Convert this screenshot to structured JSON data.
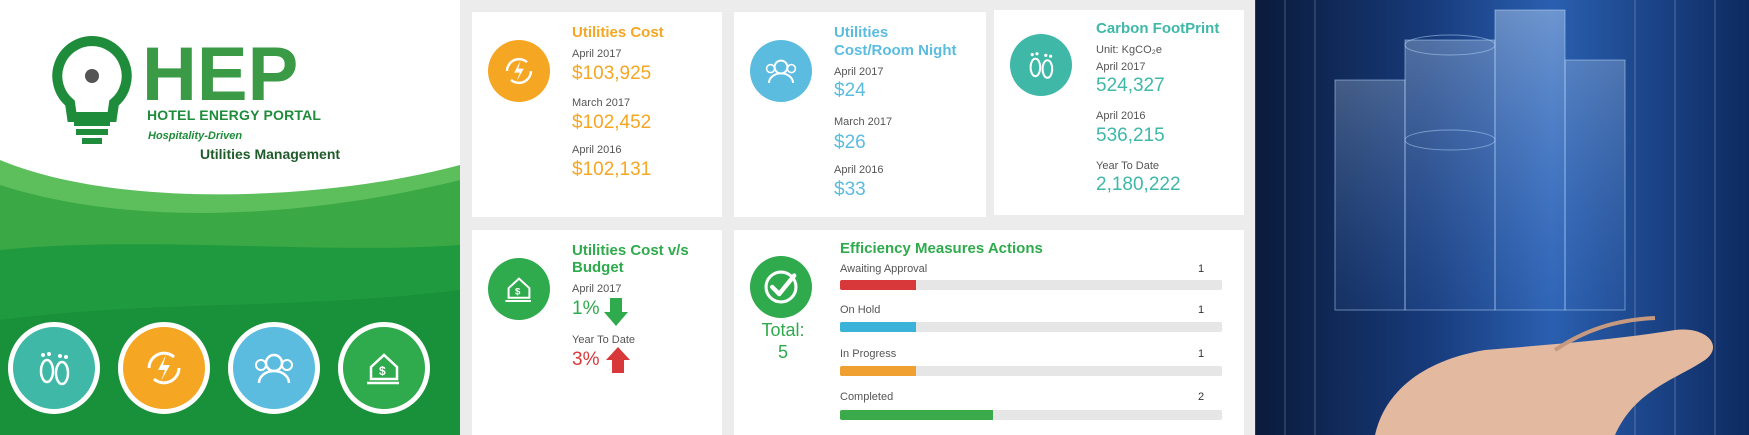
{
  "brand": {
    "logo_text": "HEP",
    "portal_name": "HOTEL ENERGY PORTAL",
    "tagline1": "Hospitality-Driven",
    "tagline2": "Utilities Management",
    "icons": [
      "footprint-icon",
      "energy-icon",
      "guests-icon",
      "budget-house-icon"
    ]
  },
  "cards": {
    "utilities_cost": {
      "title": "Utilities Cost",
      "rows": [
        {
          "label": "April 2017",
          "value": "$103,925"
        },
        {
          "label": "March 2017",
          "value": "$102,452"
        },
        {
          "label": "April 2016",
          "value": "$102,131"
        }
      ]
    },
    "cost_room_night": {
      "title1": "Utilities",
      "title2": "Cost/Room Night",
      "rows": [
        {
          "label": "April 2017",
          "value": "$24"
        },
        {
          "label": "March 2017",
          "value": "$26"
        },
        {
          "label": "April 2016",
          "value": "$33"
        }
      ]
    },
    "carbon": {
      "title": "Carbon FootPrint",
      "unit": "Unit: KgCO₂e",
      "rows": [
        {
          "label": "April 2017",
          "value": "524,327"
        },
        {
          "label": "April 2016",
          "value": "536,215"
        },
        {
          "label": "Year To Date",
          "value": "2,180,222"
        }
      ]
    },
    "budget": {
      "title1": "Utilities Cost v/s",
      "title2": "Budget",
      "rows": [
        {
          "label": "April 2017",
          "value": "1%"
        },
        {
          "label": "Year To Date",
          "value": "3%"
        }
      ]
    },
    "efficiency": {
      "title": "Efficiency Measures Actions",
      "total_label": "Total:",
      "total_value": "5",
      "items": [
        {
          "label": "Awaiting Approval",
          "count": "1",
          "fraction": 0.2,
          "color": "#d9383a"
        },
        {
          "label": "On Hold",
          "count": "1",
          "fraction": 0.2,
          "color": "#3bb3d9"
        },
        {
          "label": "In Progress",
          "count": "1",
          "fraction": 0.2,
          "color": "#f0a030"
        },
        {
          "label": "Completed",
          "count": "2",
          "fraction": 0.4,
          "color": "#3aaa4a"
        }
      ]
    }
  },
  "colors": {
    "orange": "#f5a623",
    "blue": "#5bbce0",
    "teal": "#3fb8a8",
    "green": "#2faa4c",
    "red": "#d9383a"
  }
}
